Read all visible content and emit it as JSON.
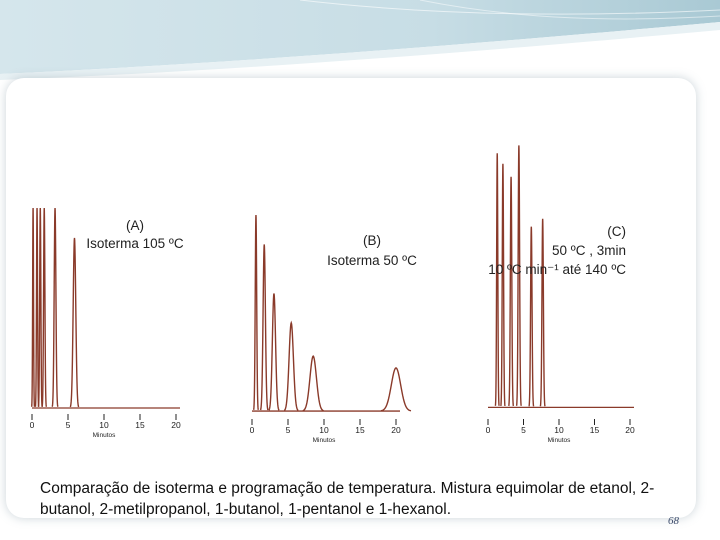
{
  "caption": "Comparação de isoterma e programação de temperatura. Mistura equimolar  de etanol, 2-butanol, 2-metilpropanol, 1-butanol, 1-pentanol e 1-hexanol.",
  "page_number": "68",
  "colors": {
    "trace": "#8a3a2a",
    "axis": "#222222",
    "header_band": "#c8dde6"
  },
  "chart_data": [
    {
      "type": "line",
      "title": [
        "(A)",
        "Isoterma 105 ºC"
      ],
      "xlabel": "Minutos",
      "xticks": [
        0,
        5,
        10,
        15,
        20
      ],
      "xlim": [
        0,
        20
      ],
      "ylim": [
        0,
        1
      ],
      "baseline": 0.01,
      "peaks": [
        {
          "t": 0.15,
          "h": 1.0,
          "w": 0.06
        },
        {
          "t": 0.7,
          "h": 1.0,
          "w": 0.07
        },
        {
          "t": 1.15,
          "h": 1.0,
          "w": 0.08
        },
        {
          "t": 1.7,
          "h": 1.0,
          "w": 0.09
        },
        {
          "t": 3.2,
          "h": 1.0,
          "w": 0.12
        },
        {
          "t": 5.9,
          "h": 0.85,
          "w": 0.18
        }
      ]
    },
    {
      "type": "line",
      "title": [
        "(B)",
        "Isoterma 50 ºC"
      ],
      "xlabel": "Minutos",
      "xticks": [
        0,
        5,
        10,
        15,
        20
      ],
      "xlim": [
        0,
        20
      ],
      "ylim": [
        0,
        1
      ],
      "baseline": 0.01,
      "peaks": [
        {
          "t": 0.55,
          "h": 1.0,
          "w": 0.1
        },
        {
          "t": 1.7,
          "h": 0.85,
          "w": 0.16
        },
        {
          "t": 3.05,
          "h": 0.6,
          "w": 0.22
        },
        {
          "t": 5.45,
          "h": 0.45,
          "w": 0.3
        },
        {
          "t": 8.5,
          "h": 0.28,
          "w": 0.45
        },
        {
          "t": 20.0,
          "h": 0.22,
          "w": 0.65
        }
      ]
    },
    {
      "type": "line",
      "title": [
        "(C)",
        "50 ºC , 3min",
        "10 ºC min⁻¹ até 140 ºC"
      ],
      "xlabel": "Minutos",
      "xticks": [
        0,
        5,
        10,
        15,
        20
      ],
      "xlim": [
        0,
        20
      ],
      "ylim": [
        0,
        1
      ],
      "baseline": 0.01,
      "peaks": [
        {
          "t": 1.3,
          "h": 0.97,
          "w": 0.08
        },
        {
          "t": 2.1,
          "h": 0.93,
          "w": 0.09
        },
        {
          "t": 3.25,
          "h": 0.88,
          "w": 0.1
        },
        {
          "t": 4.35,
          "h": 1.0,
          "w": 0.1
        },
        {
          "t": 6.1,
          "h": 0.69,
          "w": 0.1
        },
        {
          "t": 7.7,
          "h": 0.72,
          "w": 0.1
        }
      ]
    }
  ]
}
